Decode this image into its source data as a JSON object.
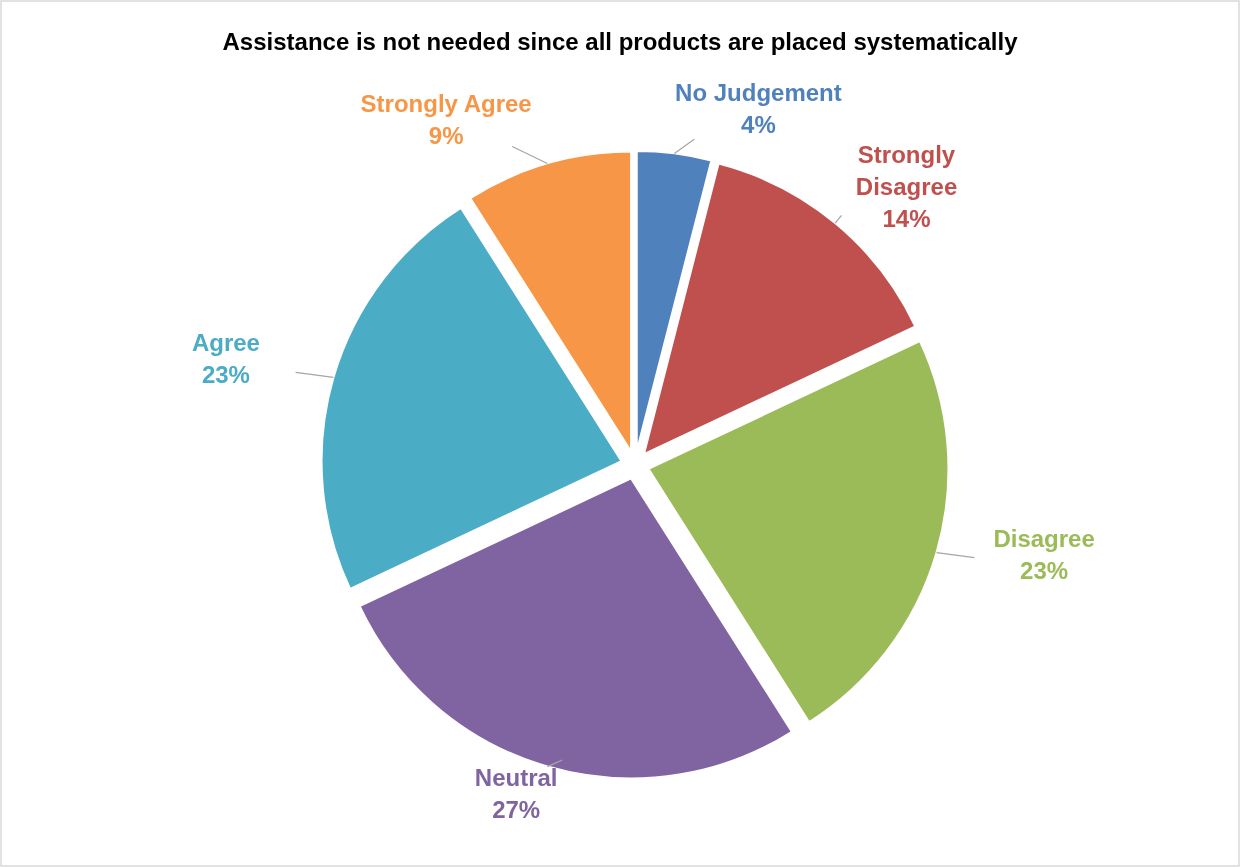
{
  "chart_data": {
    "type": "pie",
    "title": "Assistance is not needed since all products are placed systematically",
    "categories": [
      "No Judgement",
      "Strongly Disagree",
      "Disagree",
      "Neutral",
      "Agree",
      "Strongly Agree"
    ],
    "values": [
      4,
      14,
      23,
      27,
      23,
      9
    ],
    "colors": [
      "#4f81bd",
      "#c0504d",
      "#9bbb59",
      "#8064a2",
      "#4bacc6",
      "#f79646"
    ],
    "value_labels": [
      "4%",
      "14%",
      "23%",
      "27%",
      "23%",
      "9%"
    ]
  }
}
